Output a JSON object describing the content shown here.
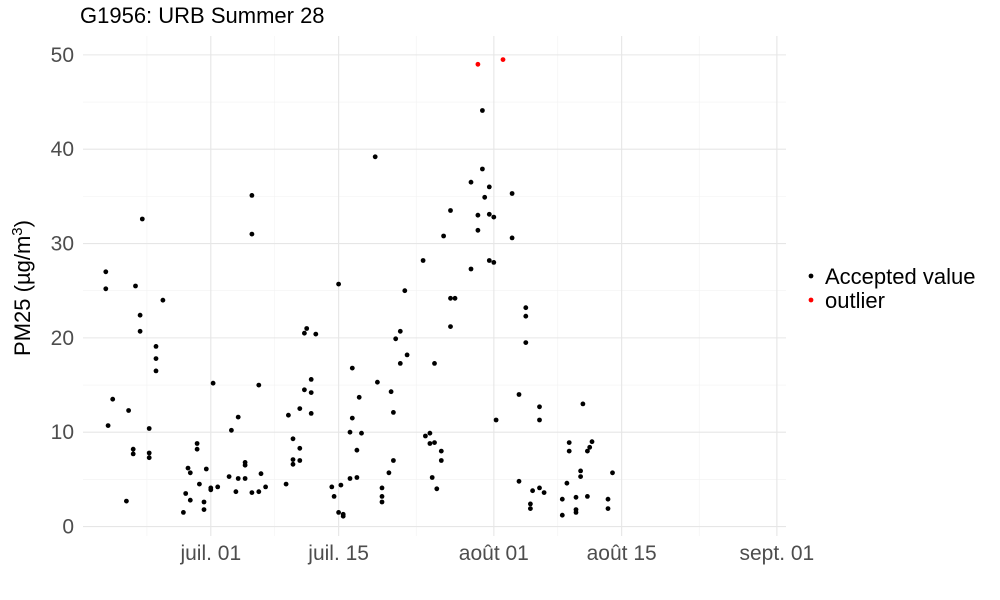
{
  "chart_data": {
    "type": "scatter",
    "title": "G1956: URB Summer 28",
    "xlabel": "",
    "ylabel": "PM25 (µg/m",
    "ylabel_superscript": "3",
    "ylabel_close": ")",
    "xlim": [
      "2022-06-17",
      "2022-09-02"
    ],
    "ylim": [
      -1,
      52
    ],
    "y_ticks": [
      0,
      10,
      20,
      30,
      40,
      50
    ],
    "x_ticks": [
      {
        "date": "2022-07-01",
        "label": "juil. 01"
      },
      {
        "date": "2022-07-15",
        "label": "juil. 15"
      },
      {
        "date": "2022-08-01",
        "label": "août 01"
      },
      {
        "date": "2022-08-15",
        "label": "août 15"
      },
      {
        "date": "2022-09-01",
        "label": "sept. 01"
      }
    ],
    "grid": true,
    "legend_position": "right",
    "series": [
      {
        "name": "Accepted value",
        "color": "#000000",
        "points": [
          [
            "2022-06-19T12:00",
            27.0
          ],
          [
            "2022-06-19T12:00",
            25.2
          ],
          [
            "2022-06-19T18:00",
            10.7
          ],
          [
            "2022-06-20T06:00",
            13.5
          ],
          [
            "2022-06-21T18:00",
            2.7
          ],
          [
            "2022-06-22T00:00",
            12.3
          ],
          [
            "2022-06-22T12:00",
            8.2
          ],
          [
            "2022-06-22T12:00",
            7.7
          ],
          [
            "2022-06-22T18:00",
            25.5
          ],
          [
            "2022-06-23T06:00",
            22.4
          ],
          [
            "2022-06-23T06:00",
            20.7
          ],
          [
            "2022-06-23T12:00",
            32.6
          ],
          [
            "2022-06-24T06:00",
            10.4
          ],
          [
            "2022-06-24T06:00",
            7.8
          ],
          [
            "2022-06-24T06:00",
            7.3
          ],
          [
            "2022-06-25T00:00",
            19.1
          ],
          [
            "2022-06-25T00:00",
            17.8
          ],
          [
            "2022-06-25T00:00",
            16.5
          ],
          [
            "2022-06-25T18:00",
            24.0
          ],
          [
            "2022-06-28T00:00",
            1.5
          ],
          [
            "2022-06-28T06:00",
            3.5
          ],
          [
            "2022-06-28T12:00",
            6.2
          ],
          [
            "2022-06-28T18:00",
            5.7
          ],
          [
            "2022-06-28T18:00",
            2.8
          ],
          [
            "2022-06-29T12:00",
            8.8
          ],
          [
            "2022-06-29T12:00",
            8.2
          ],
          [
            "2022-06-29T18:00",
            4.5
          ],
          [
            "2022-06-30T06:00",
            2.6
          ],
          [
            "2022-06-30T06:00",
            1.8
          ],
          [
            "2022-06-30T12:00",
            6.1
          ],
          [
            "2022-07-01T00:00",
            4.1
          ],
          [
            "2022-07-01T00:00",
            3.9
          ],
          [
            "2022-07-01T06:00",
            15.2
          ],
          [
            "2022-07-01T18:00",
            4.2
          ],
          [
            "2022-07-03T00:00",
            5.3
          ],
          [
            "2022-07-03T06:00",
            10.2
          ],
          [
            "2022-07-03T18:00",
            3.7
          ],
          [
            "2022-07-04T00:00",
            11.6
          ],
          [
            "2022-07-04T00:00",
            5.1
          ],
          [
            "2022-07-04T18:00",
            6.8
          ],
          [
            "2022-07-04T18:00",
            6.5
          ],
          [
            "2022-07-04T18:00",
            5.1
          ],
          [
            "2022-07-05T12:00",
            35.1
          ],
          [
            "2022-07-05T12:00",
            31.0
          ],
          [
            "2022-07-05T12:00",
            3.6
          ],
          [
            "2022-07-06T06:00",
            15.0
          ],
          [
            "2022-07-06T06:00",
            3.7
          ],
          [
            "2022-07-06T12:00",
            5.6
          ],
          [
            "2022-07-07T00:00",
            4.2
          ],
          [
            "2022-07-09T06:00",
            4.5
          ],
          [
            "2022-07-09T12:00",
            11.8
          ],
          [
            "2022-07-10T00:00",
            9.3
          ],
          [
            "2022-07-10T00:00",
            7.1
          ],
          [
            "2022-07-10T00:00",
            6.6
          ],
          [
            "2022-07-10T18:00",
            12.5
          ],
          [
            "2022-07-10T18:00",
            8.3
          ],
          [
            "2022-07-10T18:00",
            7.0
          ],
          [
            "2022-07-11T06:00",
            20.5
          ],
          [
            "2022-07-11T06:00",
            14.5
          ],
          [
            "2022-07-11T12:00",
            21.0
          ],
          [
            "2022-07-12T00:00",
            15.6
          ],
          [
            "2022-07-12T00:00",
            14.2
          ],
          [
            "2022-07-12T00:00",
            12.0
          ],
          [
            "2022-07-12T12:00",
            20.4
          ],
          [
            "2022-07-14T06:00",
            4.2
          ],
          [
            "2022-07-14T12:00",
            3.2
          ],
          [
            "2022-07-15T00:00",
            25.7
          ],
          [
            "2022-07-15T00:00",
            1.5
          ],
          [
            "2022-07-15T06:00",
            4.4
          ],
          [
            "2022-07-15T12:00",
            1.3
          ],
          [
            "2022-07-15T12:00",
            1.1
          ],
          [
            "2022-07-16T06:00",
            5.1
          ],
          [
            "2022-07-16T06:00",
            10.0
          ],
          [
            "2022-07-16T12:00",
            16.8
          ],
          [
            "2022-07-16T12:00",
            11.5
          ],
          [
            "2022-07-17T00:00",
            8.1
          ],
          [
            "2022-07-17T00:00",
            5.2
          ],
          [
            "2022-07-17T06:00",
            13.7
          ],
          [
            "2022-07-17T12:00",
            9.9
          ],
          [
            "2022-07-19T00:00",
            39.2
          ],
          [
            "2022-07-19T06:00",
            15.3
          ],
          [
            "2022-07-19T18:00",
            4.1
          ],
          [
            "2022-07-19T18:00",
            3.2
          ],
          [
            "2022-07-19T18:00",
            2.6
          ],
          [
            "2022-07-20T12:00",
            5.7
          ],
          [
            "2022-07-20T18:00",
            14.3
          ],
          [
            "2022-07-21T00:00",
            12.1
          ],
          [
            "2022-07-21T00:00",
            7.0
          ],
          [
            "2022-07-21T06:00",
            19.9
          ],
          [
            "2022-07-21T18:00",
            20.7
          ],
          [
            "2022-07-21T18:00",
            17.3
          ],
          [
            "2022-07-22T06:00",
            25.0
          ],
          [
            "2022-07-22T12:00",
            18.2
          ],
          [
            "2022-07-24T06:00",
            28.2
          ],
          [
            "2022-07-24T12:00",
            9.6
          ],
          [
            "2022-07-25T00:00",
            9.9
          ],
          [
            "2022-07-25T00:00",
            8.8
          ],
          [
            "2022-07-25T06:00",
            5.2
          ],
          [
            "2022-07-25T12:00",
            17.3
          ],
          [
            "2022-07-25T12:00",
            8.9
          ],
          [
            "2022-07-25T18:00",
            4.0
          ],
          [
            "2022-07-26T06:00",
            8.0
          ],
          [
            "2022-07-26T06:00",
            7.0
          ],
          [
            "2022-07-26T12:00",
            30.8
          ],
          [
            "2022-07-27T06:00",
            33.5
          ],
          [
            "2022-07-27T06:00",
            24.2
          ],
          [
            "2022-07-27T06:00",
            21.2
          ],
          [
            "2022-07-27T18:00",
            24.2
          ],
          [
            "2022-07-29T12:00",
            36.5
          ],
          [
            "2022-07-29T12:00",
            27.3
          ],
          [
            "2022-07-30T06:00",
            33.0
          ],
          [
            "2022-07-30T06:00",
            31.4
          ],
          [
            "2022-07-30T18:00",
            44.1
          ],
          [
            "2022-07-30T18:00",
            37.9
          ],
          [
            "2022-07-31T00:00",
            34.9
          ],
          [
            "2022-07-31T12:00",
            36.0
          ],
          [
            "2022-07-31T12:00",
            33.1
          ],
          [
            "2022-07-31T12:00",
            28.2
          ],
          [
            "2022-08-01T00:00",
            32.8
          ],
          [
            "2022-08-01T00:00",
            28.0
          ],
          [
            "2022-08-01T06:00",
            11.3
          ],
          [
            "2022-08-03T00:00",
            35.3
          ],
          [
            "2022-08-03T00:00",
            30.6
          ],
          [
            "2022-08-03T18:00",
            14.0
          ],
          [
            "2022-08-03T18:00",
            4.8
          ],
          [
            "2022-08-04T12:00",
            23.2
          ],
          [
            "2022-08-04T12:00",
            22.3
          ],
          [
            "2022-08-04T12:00",
            19.5
          ],
          [
            "2022-08-05T00:00",
            2.4
          ],
          [
            "2022-08-05T00:00",
            1.9
          ],
          [
            "2022-08-05T06:00",
            3.8
          ],
          [
            "2022-08-06T00:00",
            12.7
          ],
          [
            "2022-08-06T00:00",
            11.3
          ],
          [
            "2022-08-06T00:00",
            4.1
          ],
          [
            "2022-08-06T12:00",
            3.6
          ],
          [
            "2022-08-08T12:00",
            1.2
          ],
          [
            "2022-08-08T12:00",
            2.9
          ],
          [
            "2022-08-09T00:00",
            4.6
          ],
          [
            "2022-08-09T06:00",
            8.9
          ],
          [
            "2022-08-09T06:00",
            8.0
          ],
          [
            "2022-08-10T00:00",
            3.1
          ],
          [
            "2022-08-10T00:00",
            1.8
          ],
          [
            "2022-08-10T00:00",
            1.5
          ],
          [
            "2022-08-10T12:00",
            5.9
          ],
          [
            "2022-08-10T12:00",
            5.3
          ],
          [
            "2022-08-10T18:00",
            13.0
          ],
          [
            "2022-08-11T06:00",
            8.0
          ],
          [
            "2022-08-11T06:00",
            3.2
          ],
          [
            "2022-08-11T12:00",
            8.4
          ],
          [
            "2022-08-11T18:00",
            9.0
          ],
          [
            "2022-08-13T12:00",
            2.9
          ],
          [
            "2022-08-13T12:00",
            1.9
          ],
          [
            "2022-08-14T00:00",
            5.7
          ]
        ]
      },
      {
        "name": "outlier",
        "color": "#ff0000",
        "points": [
          [
            "2022-07-30T06:00",
            49.0
          ],
          [
            "2022-08-02T00:00",
            49.5
          ]
        ]
      }
    ]
  }
}
